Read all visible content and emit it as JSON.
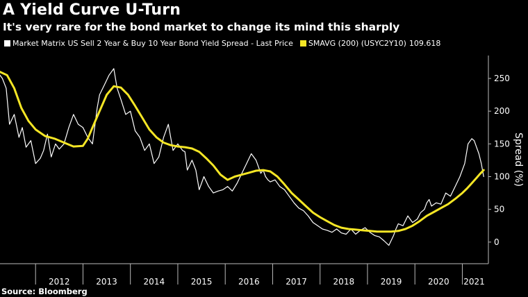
{
  "title": "A Yield Curve U-Turn",
  "subtitle": "It's very rare for the bond market to change its mind this sharply",
  "source": "Source: Bloomberg",
  "legend": {
    "series1_label": "Market Matrix US Sell 2 Year & Buy 10 Year Bond Yield Spread - Last Price",
    "series2_label": "SMAVG (200) (USYC2Y10)",
    "series2_value": "109.618"
  },
  "colors": {
    "background": "#000000",
    "series1": "#ffffff",
    "series2": "#f5e625",
    "axis": "#bbbbbb"
  },
  "chart_data": {
    "type": "line",
    "xlim": [
      2011.25,
      2021.55
    ],
    "ylim": [
      -33,
      285
    ],
    "yticks": [
      0,
      50,
      100,
      150,
      200,
      250
    ],
    "xticks": [
      {
        "label": "2012",
        "value": 2012.5
      },
      {
        "label": "2013",
        "value": 2013.5
      },
      {
        "label": "2014",
        "value": 2014.5
      },
      {
        "label": "2015",
        "value": 2015.5
      },
      {
        "label": "2016",
        "value": 2016.5
      },
      {
        "label": "2017",
        "value": 2017.5
      },
      {
        "label": "2018",
        "value": 2018.5
      },
      {
        "label": "2019",
        "value": 2019.5
      },
      {
        "label": "2020",
        "value": 2020.5
      },
      {
        "label": "2021",
        "value": 2021.25
      }
    ],
    "ylabel": "Spread (%)",
    "grid": false,
    "series": [
      {
        "name": "Market Matrix US Sell 2 Year & Buy 10 Year Bond Yield Spread - Last Price",
        "x": [
          2011.25,
          2011.3,
          2011.38,
          2011.45,
          2011.55,
          2011.65,
          2011.72,
          2011.8,
          2011.9,
          2012.0,
          2012.1,
          2012.17,
          2012.25,
          2012.33,
          2012.42,
          2012.5,
          2012.6,
          2012.7,
          2012.8,
          2012.9,
          2013.0,
          2013.1,
          2013.2,
          2013.3,
          2013.35,
          2013.45,
          2013.55,
          2013.65,
          2013.72,
          2013.8,
          2013.9,
          2014.0,
          2014.05,
          2014.1,
          2014.2,
          2014.3,
          2014.4,
          2014.5,
          2014.6,
          2014.7,
          2014.8,
          2014.9,
          2015.0,
          2015.1,
          2015.15,
          2015.2,
          2015.3,
          2015.38,
          2015.45,
          2015.5,
          2015.55,
          2015.65,
          2015.75,
          2015.85,
          2015.95,
          2016.05,
          2016.15,
          2016.25,
          2016.35,
          2016.45,
          2016.55,
          2016.65,
          2016.75,
          2016.8,
          2016.85,
          2016.9,
          2016.95,
          2017.05,
          2017.15,
          2017.25,
          2017.35,
          2017.45,
          2017.55,
          2017.65,
          2017.75,
          2017.85,
          2017.95,
          2018.05,
          2018.15,
          2018.25,
          2018.35,
          2018.45,
          2018.55,
          2018.65,
          2018.75,
          2018.85,
          2018.95,
          2019.05,
          2019.15,
          2019.25,
          2019.35,
          2019.45,
          2019.55,
          2019.6,
          2019.65,
          2019.75,
          2019.85,
          2019.95,
          2020.05,
          2020.12,
          2020.2,
          2020.25,
          2020.3,
          2020.35,
          2020.45,
          2020.55,
          2020.65,
          2020.75,
          2020.85,
          2020.95,
          2021.05,
          2021.12,
          2021.2,
          2021.25,
          2021.3,
          2021.35,
          2021.4,
          2021.45
        ],
        "y": [
          255,
          250,
          235,
          180,
          195,
          160,
          175,
          145,
          155,
          120,
          128,
          140,
          165,
          130,
          150,
          142,
          150,
          175,
          195,
          180,
          175,
          160,
          150,
          205,
          225,
          240,
          255,
          265,
          235,
          218,
          195,
          200,
          185,
          170,
          160,
          140,
          150,
          120,
          130,
          160,
          180,
          140,
          150,
          140,
          138,
          110,
          125,
          110,
          80,
          90,
          100,
          85,
          75,
          78,
          80,
          85,
          78,
          90,
          105,
          120,
          135,
          125,
          105,
          110,
          100,
          95,
          92,
          95,
          85,
          80,
          70,
          60,
          52,
          48,
          40,
          30,
          25,
          20,
          18,
          15,
          20,
          14,
          12,
          20,
          12,
          18,
          22,
          15,
          10,
          8,
          2,
          -5,
          10,
          20,
          28,
          25,
          40,
          30,
          35,
          45,
          50,
          60,
          65,
          55,
          60,
          58,
          75,
          70,
          85,
          100,
          120,
          150,
          158,
          155,
          145,
          135,
          120,
          100
        ],
        "color": "#ffffff"
      },
      {
        "name": "SMAVG (200) (USYC2Y10)",
        "x": [
          2011.25,
          2011.4,
          2011.55,
          2011.7,
          2011.85,
          2012.0,
          2012.2,
          2012.4,
          2012.6,
          2012.8,
          2013.0,
          2013.1,
          2013.2,
          2013.35,
          2013.5,
          2013.65,
          2013.8,
          2013.95,
          2014.1,
          2014.25,
          2014.4,
          2014.55,
          2014.7,
          2014.85,
          2015.0,
          2015.15,
          2015.3,
          2015.45,
          2015.6,
          2015.75,
          2015.9,
          2016.05,
          2016.2,
          2016.35,
          2016.5,
          2016.65,
          2016.8,
          2016.95,
          2017.1,
          2017.25,
          2017.4,
          2017.55,
          2017.7,
          2017.85,
          2018.0,
          2018.15,
          2018.3,
          2018.45,
          2018.6,
          2018.75,
          2018.9,
          2019.05,
          2019.2,
          2019.35,
          2019.5,
          2019.65,
          2019.8,
          2019.95,
          2020.1,
          2020.25,
          2020.4,
          2020.55,
          2020.7,
          2020.85,
          2021.0,
          2021.1,
          2021.2,
          2021.3,
          2021.37,
          2021.45
        ],
        "y": [
          260,
          255,
          235,
          205,
          185,
          172,
          162,
          158,
          152,
          146,
          147,
          158,
          175,
          200,
          225,
          238,
          236,
          225,
          208,
          190,
          172,
          160,
          152,
          148,
          146,
          145,
          143,
          138,
          128,
          117,
          103,
          95,
          100,
          103,
          106,
          109,
          110,
          108,
          100,
          88,
          75,
          65,
          55,
          45,
          38,
          32,
          26,
          22,
          20,
          19,
          18,
          17,
          16,
          16,
          16,
          17,
          20,
          25,
          32,
          40,
          46,
          52,
          58,
          66,
          75,
          82,
          90,
          98,
          104,
          110
        ],
        "color": "#f5e625"
      }
    ]
  }
}
